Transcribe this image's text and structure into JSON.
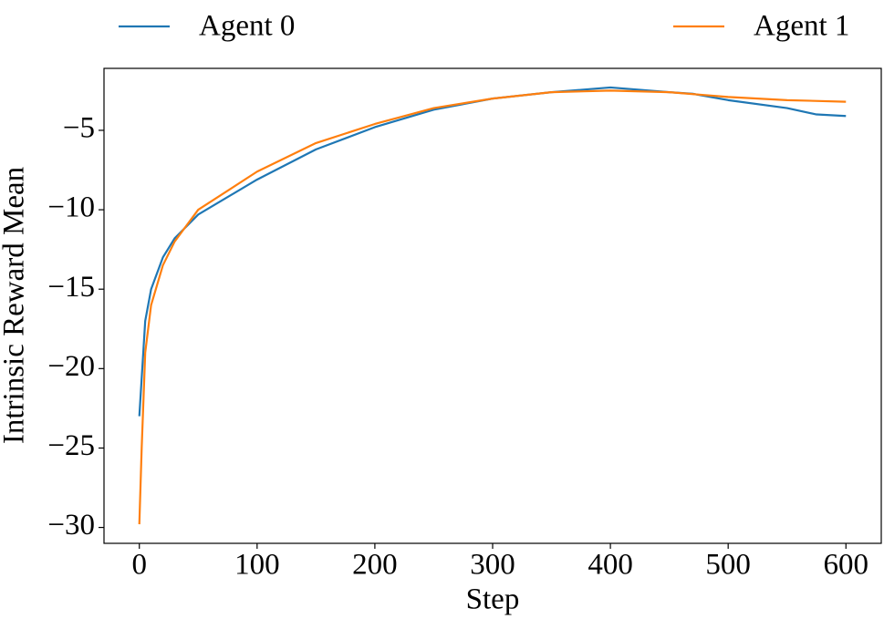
{
  "chart_data": {
    "type": "line",
    "xlabel": "Step",
    "ylabel": "Intrinsic Reward Mean",
    "legend": "top",
    "xlim": [
      -30,
      630
    ],
    "ylim": [
      -31.0,
      -1.1
    ],
    "xticks": [
      0,
      100,
      200,
      300,
      400,
      500,
      600
    ],
    "yticks": [
      {
        "value": -30,
        "label": "−30"
      },
      {
        "value": -25,
        "label": "−25"
      },
      {
        "value": -20,
        "label": "−20"
      },
      {
        "value": -15,
        "label": "−15"
      },
      {
        "value": -10,
        "label": "−10"
      },
      {
        "value": -5,
        "label": "−5"
      }
    ],
    "series": [
      {
        "name": "Agent 0",
        "color": "#1f77b4",
        "x": [
          0,
          5,
          10,
          20,
          30,
          50,
          100,
          150,
          200,
          250,
          300,
          350,
          400,
          450,
          470,
          500,
          550,
          575,
          600
        ],
        "values": [
          -23,
          -17,
          -15,
          -13,
          -11.8,
          -10.3,
          -8.1,
          -6.2,
          -4.8,
          -3.7,
          -3.0,
          -2.6,
          -2.3,
          -2.6,
          -2.7,
          -3.1,
          -3.6,
          -4.0,
          -4.1
        ]
      },
      {
        "name": "Agent 1",
        "color": "#ff7f0e",
        "x": [
          0,
          2,
          5,
          10,
          20,
          30,
          50,
          100,
          150,
          200,
          250,
          300,
          350,
          400,
          450,
          500,
          550,
          600
        ],
        "values": [
          -29.8,
          -25,
          -19,
          -16,
          -13.5,
          -12,
          -10,
          -7.6,
          -5.8,
          -4.6,
          -3.6,
          -3.0,
          -2.6,
          -2.5,
          -2.6,
          -2.9,
          -3.1,
          -3.2
        ]
      }
    ]
  }
}
